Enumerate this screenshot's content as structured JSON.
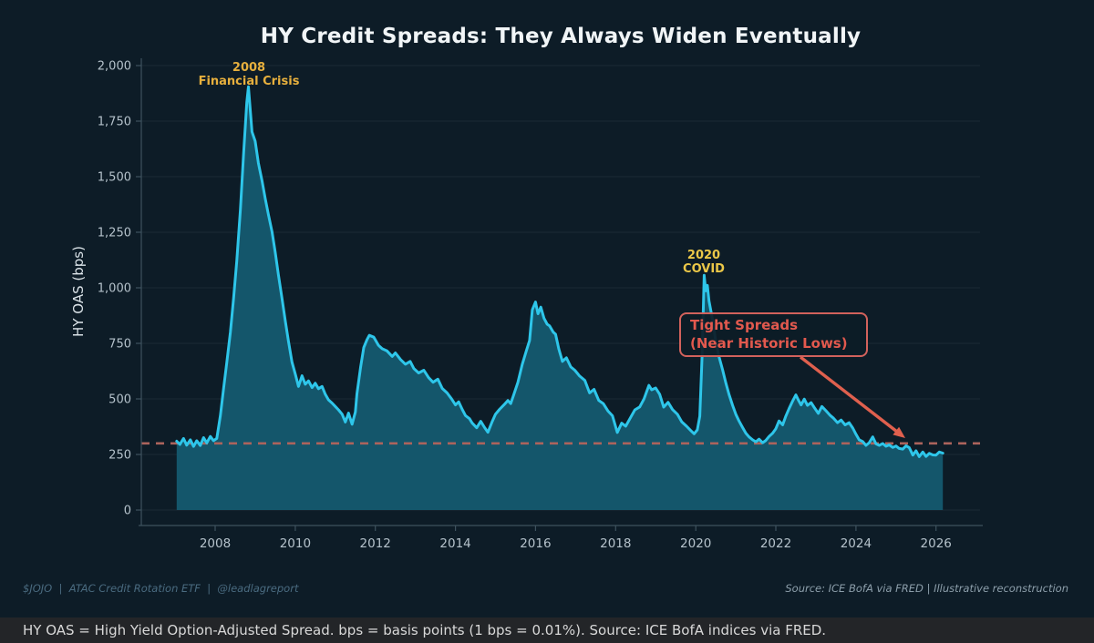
{
  "header": {
    "title": "HY Credit Spreads: They Always Widen Eventually"
  },
  "chart_data": {
    "type": "area",
    "title": "HY Credit Spreads: They Always Widen Eventually",
    "xlabel": "",
    "ylabel": "HY OAS (bps)",
    "grid": "horizontal",
    "legend": "none",
    "x_axis": {
      "ticks": [
        2008,
        2010,
        2012,
        2014,
        2016,
        2018,
        2020,
        2022,
        2024,
        2026
      ],
      "range": [
        2006.16,
        2027.1
      ]
    },
    "y_axis": {
      "label": "HY OAS (bps)",
      "tick_values": [
        0,
        250,
        500,
        750,
        1000,
        1250,
        1500,
        1750,
        2000
      ],
      "tick_labels": [
        "0",
        "250",
        "500",
        "750",
        "1,000",
        "1,250",
        "1,500",
        "1,750",
        "2,000"
      ],
      "range": [
        0,
        2100
      ]
    },
    "threshold": {
      "value": 300,
      "style": "dashed",
      "color": "#ac635c"
    },
    "series": [
      {
        "name": "HY OAS",
        "type": "area",
        "color": "#2ec6ea",
        "fill": "#14566b",
        "points": [
          [
            2007.04,
            310
          ],
          [
            2007.12,
            295
          ],
          [
            2007.21,
            322
          ],
          [
            2007.29,
            292
          ],
          [
            2007.38,
            316
          ],
          [
            2007.46,
            286
          ],
          [
            2007.54,
            312
          ],
          [
            2007.63,
            290
          ],
          [
            2007.71,
            326
          ],
          [
            2007.79,
            302
          ],
          [
            2007.88,
            331
          ],
          [
            2007.96,
            312
          ],
          [
            2008.04,
            322
          ],
          [
            2008.13,
            424
          ],
          [
            2008.21,
            545
          ],
          [
            2008.29,
            662
          ],
          [
            2008.38,
            800
          ],
          [
            2008.46,
            952
          ],
          [
            2008.54,
            1120
          ],
          [
            2008.63,
            1352
          ],
          [
            2008.71,
            1604
          ],
          [
            2008.79,
            1834
          ],
          [
            2008.83,
            1905
          ],
          [
            2008.92,
            1702
          ],
          [
            2009.0,
            1660
          ],
          [
            2009.08,
            1562
          ],
          [
            2009.17,
            1482
          ],
          [
            2009.25,
            1402
          ],
          [
            2009.33,
            1330
          ],
          [
            2009.42,
            1252
          ],
          [
            2009.5,
            1160
          ],
          [
            2009.58,
            1058
          ],
          [
            2009.67,
            950
          ],
          [
            2009.75,
            852
          ],
          [
            2009.83,
            760
          ],
          [
            2009.92,
            665
          ],
          [
            2010.0,
            612
          ],
          [
            2010.08,
            556
          ],
          [
            2010.17,
            604
          ],
          [
            2010.25,
            566
          ],
          [
            2010.33,
            581
          ],
          [
            2010.42,
            551
          ],
          [
            2010.5,
            571
          ],
          [
            2010.58,
            546
          ],
          [
            2010.67,
            556
          ],
          [
            2010.75,
            521
          ],
          [
            2010.83,
            496
          ],
          [
            2010.92,
            481
          ],
          [
            2011.0,
            466
          ],
          [
            2011.08,
            451
          ],
          [
            2011.17,
            431
          ],
          [
            2011.25,
            396
          ],
          [
            2011.33,
            436
          ],
          [
            2011.42,
            386
          ],
          [
            2011.5,
            441
          ],
          [
            2011.54,
            522
          ],
          [
            2011.63,
            642
          ],
          [
            2011.71,
            731
          ],
          [
            2011.79,
            766
          ],
          [
            2011.85,
            786
          ],
          [
            2011.96,
            778
          ],
          [
            2012.08,
            741
          ],
          [
            2012.17,
            726
          ],
          [
            2012.29,
            716
          ],
          [
            2012.42,
            691
          ],
          [
            2012.5,
            707
          ],
          [
            2012.63,
            677
          ],
          [
            2012.75,
            656
          ],
          [
            2012.87,
            669
          ],
          [
            2012.96,
            637
          ],
          [
            2013.08,
            617
          ],
          [
            2013.21,
            629
          ],
          [
            2013.33,
            596
          ],
          [
            2013.44,
            575
          ],
          [
            2013.56,
            589
          ],
          [
            2013.67,
            547
          ],
          [
            2013.79,
            527
          ],
          [
            2013.9,
            501
          ],
          [
            2014.0,
            473
          ],
          [
            2014.08,
            487
          ],
          [
            2014.17,
            453
          ],
          [
            2014.25,
            425
          ],
          [
            2014.35,
            411
          ],
          [
            2014.42,
            391
          ],
          [
            2014.53,
            370
          ],
          [
            2014.63,
            399
          ],
          [
            2014.73,
            371
          ],
          [
            2014.81,
            350
          ],
          [
            2014.92,
            399
          ],
          [
            2015.0,
            431
          ],
          [
            2015.1,
            453
          ],
          [
            2015.21,
            473
          ],
          [
            2015.31,
            493
          ],
          [
            2015.38,
            479
          ],
          [
            2015.46,
            521
          ],
          [
            2015.56,
            575
          ],
          [
            2015.67,
            656
          ],
          [
            2015.77,
            716
          ],
          [
            2015.85,
            763
          ],
          [
            2015.92,
            901
          ],
          [
            2016.0,
            936
          ],
          [
            2016.06,
            883
          ],
          [
            2016.13,
            913
          ],
          [
            2016.21,
            863
          ],
          [
            2016.29,
            836
          ],
          [
            2016.35,
            829
          ],
          [
            2016.44,
            801
          ],
          [
            2016.5,
            791
          ],
          [
            2016.58,
            726
          ],
          [
            2016.67,
            669
          ],
          [
            2016.77,
            685
          ],
          [
            2016.88,
            644
          ],
          [
            2016.98,
            629
          ],
          [
            2017.1,
            603
          ],
          [
            2017.23,
            583
          ],
          [
            2017.35,
            527
          ],
          [
            2017.46,
            543
          ],
          [
            2017.58,
            493
          ],
          [
            2017.69,
            479
          ],
          [
            2017.81,
            445
          ],
          [
            2017.92,
            424
          ],
          [
            2018.04,
            349
          ],
          [
            2018.15,
            391
          ],
          [
            2018.25,
            377
          ],
          [
            2018.38,
            419
          ],
          [
            2018.48,
            451
          ],
          [
            2018.6,
            464
          ],
          [
            2018.71,
            501
          ],
          [
            2018.83,
            561
          ],
          [
            2018.9,
            541
          ],
          [
            2019.0,
            549
          ],
          [
            2019.1,
            521
          ],
          [
            2019.2,
            463
          ],
          [
            2019.31,
            485
          ],
          [
            2019.42,
            452
          ],
          [
            2019.54,
            431
          ],
          [
            2019.65,
            397
          ],
          [
            2019.77,
            377
          ],
          [
            2019.88,
            357
          ],
          [
            2019.96,
            343
          ],
          [
            2020.04,
            361
          ],
          [
            2020.1,
            422
          ],
          [
            2020.16,
            702
          ],
          [
            2020.21,
            1056
          ],
          [
            2020.25,
            986
          ],
          [
            2020.29,
            1011
          ],
          [
            2020.33,
            941
          ],
          [
            2020.42,
            856
          ],
          [
            2020.5,
            761
          ],
          [
            2020.58,
            691
          ],
          [
            2020.67,
            631
          ],
          [
            2020.75,
            573
          ],
          [
            2020.83,
            521
          ],
          [
            2020.92,
            471
          ],
          [
            2021.0,
            431
          ],
          [
            2021.08,
            401
          ],
          [
            2021.17,
            371
          ],
          [
            2021.25,
            346
          ],
          [
            2021.33,
            329
          ],
          [
            2021.42,
            316
          ],
          [
            2021.5,
            307
          ],
          [
            2021.58,
            319
          ],
          [
            2021.67,
            303
          ],
          [
            2021.75,
            313
          ],
          [
            2021.83,
            331
          ],
          [
            2021.92,
            346
          ],
          [
            2022.0,
            366
          ],
          [
            2022.08,
            401
          ],
          [
            2022.17,
            383
          ],
          [
            2022.25,
            423
          ],
          [
            2022.33,
            456
          ],
          [
            2022.42,
            491
          ],
          [
            2022.5,
            518
          ],
          [
            2022.56,
            496
          ],
          [
            2022.63,
            473
          ],
          [
            2022.71,
            499
          ],
          [
            2022.79,
            471
          ],
          [
            2022.88,
            483
          ],
          [
            2022.96,
            461
          ],
          [
            2023.06,
            435
          ],
          [
            2023.15,
            466
          ],
          [
            2023.25,
            447
          ],
          [
            2023.35,
            427
          ],
          [
            2023.44,
            413
          ],
          [
            2023.54,
            393
          ],
          [
            2023.63,
            405
          ],
          [
            2023.73,
            383
          ],
          [
            2023.83,
            393
          ],
          [
            2023.92,
            369
          ],
          [
            2024.0,
            341
          ],
          [
            2024.08,
            316
          ],
          [
            2024.17,
            308
          ],
          [
            2024.25,
            291
          ],
          [
            2024.33,
            303
          ],
          [
            2024.42,
            329
          ],
          [
            2024.5,
            298
          ],
          [
            2024.58,
            291
          ],
          [
            2024.67,
            299
          ],
          [
            2024.75,
            287
          ],
          [
            2024.83,
            293
          ],
          [
            2024.92,
            282
          ],
          [
            2025.0,
            288
          ],
          [
            2025.08,
            277
          ],
          [
            2025.17,
            274
          ],
          [
            2025.25,
            289
          ],
          [
            2025.33,
            281
          ],
          [
            2025.42,
            247
          ],
          [
            2025.5,
            267
          ],
          [
            2025.58,
            240
          ],
          [
            2025.67,
            261
          ],
          [
            2025.75,
            241
          ],
          [
            2025.83,
            255
          ],
          [
            2025.92,
            248
          ],
          [
            2026.0,
            247
          ],
          [
            2026.08,
            261
          ],
          [
            2026.17,
            256
          ]
        ]
      }
    ],
    "annotations": {
      "crisis_2008": {
        "line1": "2008",
        "line2": "Financial Crisis",
        "color": "#e6af3d"
      },
      "covid_2020": {
        "line1": "2020",
        "line2": "COVID",
        "color": "#ecc848"
      },
      "tight_spreads": {
        "line1": "Tight Spreads",
        "line2": "(Near Historic Lows)",
        "color": "#e2594e"
      }
    }
  },
  "footer": {
    "left": "$JOJO  |  ATAC Credit Rotation ETF  |  @leadlagreport",
    "right": "Source: ICE BofA via FRED | Illustrative reconstruction"
  },
  "note_bar": {
    "text": "HY OAS = High Yield Option-Adjusted Spread. bps = basis points (1 bps = 0.01%). Source: ICE BofA indices via FRED."
  },
  "colors": {
    "background": "#0d1c27",
    "grid": "#1a2a35",
    "spine": "#3e525e",
    "tick_text": "#b5c2cb",
    "line": "#2ec6ea",
    "fill": "#14566b",
    "threshold": "#ac635c",
    "arrow": "#e0604e",
    "note_bar_bg": "#232528",
    "note_bar_text": "#d8d8d8"
  }
}
